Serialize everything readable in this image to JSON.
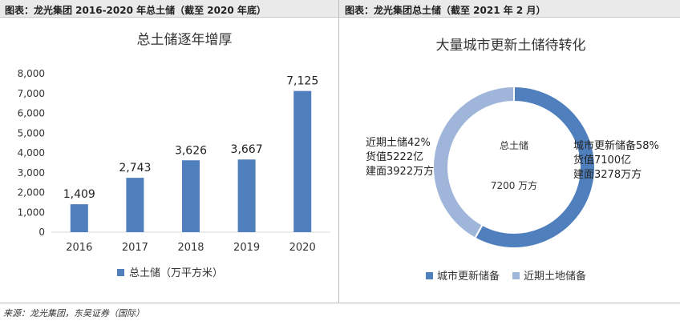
{
  "captions": {
    "left": "图表：龙光集团 2016-2020 年总土储（截至 2020 年底）",
    "right": "图表：龙光集团总土储（截至 2021 年 2 月）"
  },
  "source": "来源：龙光集团，东吴证券（国际）",
  "colors": {
    "primary": "#4f7fbd",
    "secondary": "#9fb5d9",
    "grid": "#d9d9d9",
    "axis": "#bfbfbf"
  },
  "chart_data": [
    {
      "type": "bar",
      "title": "总土储逐年增厚",
      "categories": [
        "2016",
        "2017",
        "2018",
        "2019",
        "2020"
      ],
      "values": [
        1409,
        2743,
        3626,
        3667,
        7125
      ],
      "value_labels": [
        "1,409",
        "2,743",
        "3,626",
        "3,667",
        "7,125"
      ],
      "ylim": [
        0,
        8000
      ],
      "yticks": [
        "0",
        "1,000",
        "2,000",
        "3,000",
        "4,000",
        "5,000",
        "6,000",
        "7,000",
        "8,000"
      ],
      "legend": "总土储（万平方米）",
      "xlabel": "",
      "ylabel": "",
      "grid": false
    },
    {
      "type": "pie",
      "title": "大量城市更新土储待转化",
      "center_labels": [
        "总土储",
        "7200 万方"
      ],
      "slices": [
        {
          "name": "城市更新储备",
          "percent": 58,
          "annotation": [
            "城市更新储备58%",
            "货值7100亿",
            "建面3278万方"
          ]
        },
        {
          "name": "近期土地储备",
          "percent": 42,
          "annotation": [
            "近期土储42%",
            "货值5222亿",
            "建面3922万方"
          ]
        }
      ],
      "legend": [
        "城市更新储备",
        "近期土地储备"
      ]
    }
  ]
}
